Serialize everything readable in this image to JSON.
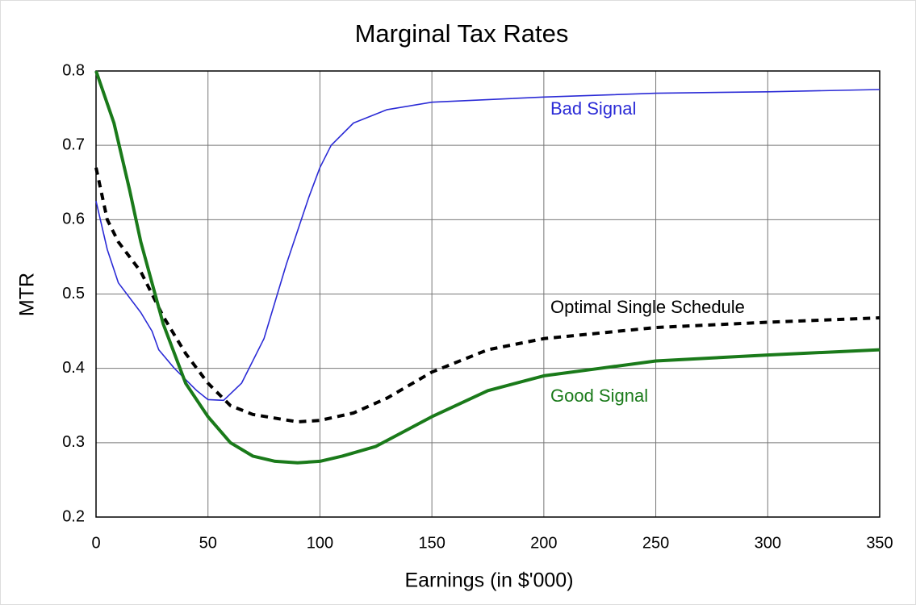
{
  "chart_data": {
    "type": "line",
    "title": "Marginal Tax Rates",
    "x_label": "Earnings (in $'000)",
    "y_label": "MTR",
    "xlim": [
      0,
      350
    ],
    "xticks": [
      0,
      50,
      100,
      150,
      200,
      250,
      300,
      350
    ],
    "ylim": [
      0.2,
      0.8
    ],
    "yticks": [
      0.2,
      0.3,
      0.4,
      0.5,
      0.6,
      0.7,
      0.8
    ],
    "grid": true,
    "series": [
      {
        "name": "Bad Signal",
        "color": "#2b2bd6",
        "style": "solid",
        "x": [
          0,
          5,
          10,
          20,
          25,
          28,
          35,
          45,
          50,
          57,
          65,
          75,
          85,
          95,
          100,
          105,
          115,
          130,
          150,
          200,
          250,
          300,
          350
        ],
        "values": [
          0.625,
          0.56,
          0.515,
          0.475,
          0.45,
          0.425,
          0.4,
          0.37,
          0.358,
          0.357,
          0.38,
          0.44,
          0.54,
          0.63,
          0.67,
          0.7,
          0.73,
          0.748,
          0.758,
          0.765,
          0.77,
          0.772,
          0.775
        ]
      },
      {
        "name": "Optimal Single Schedule",
        "color": "#000000",
        "style": "dashed",
        "x": [
          0,
          5,
          10,
          20,
          30,
          40,
          50,
          60,
          70,
          90,
          100,
          115,
          130,
          150,
          175,
          200,
          250,
          300,
          350
        ],
        "values": [
          0.67,
          0.6,
          0.57,
          0.53,
          0.47,
          0.42,
          0.38,
          0.35,
          0.338,
          0.328,
          0.33,
          0.34,
          0.36,
          0.395,
          0.425,
          0.44,
          0.455,
          0.462,
          0.468
        ]
      },
      {
        "name": "Good Signal",
        "color": "#1a7a1a",
        "style": "solid",
        "x": [
          0,
          8,
          15,
          20,
          30,
          40,
          50,
          60,
          70,
          80,
          90,
          100,
          110,
          125,
          150,
          175,
          200,
          225,
          250,
          300,
          350
        ],
        "values": [
          0.8,
          0.73,
          0.64,
          0.57,
          0.46,
          0.38,
          0.335,
          0.3,
          0.282,
          0.275,
          0.273,
          0.275,
          0.282,
          0.295,
          0.335,
          0.37,
          0.39,
          0.4,
          0.41,
          0.418,
          0.425
        ]
      }
    ]
  }
}
